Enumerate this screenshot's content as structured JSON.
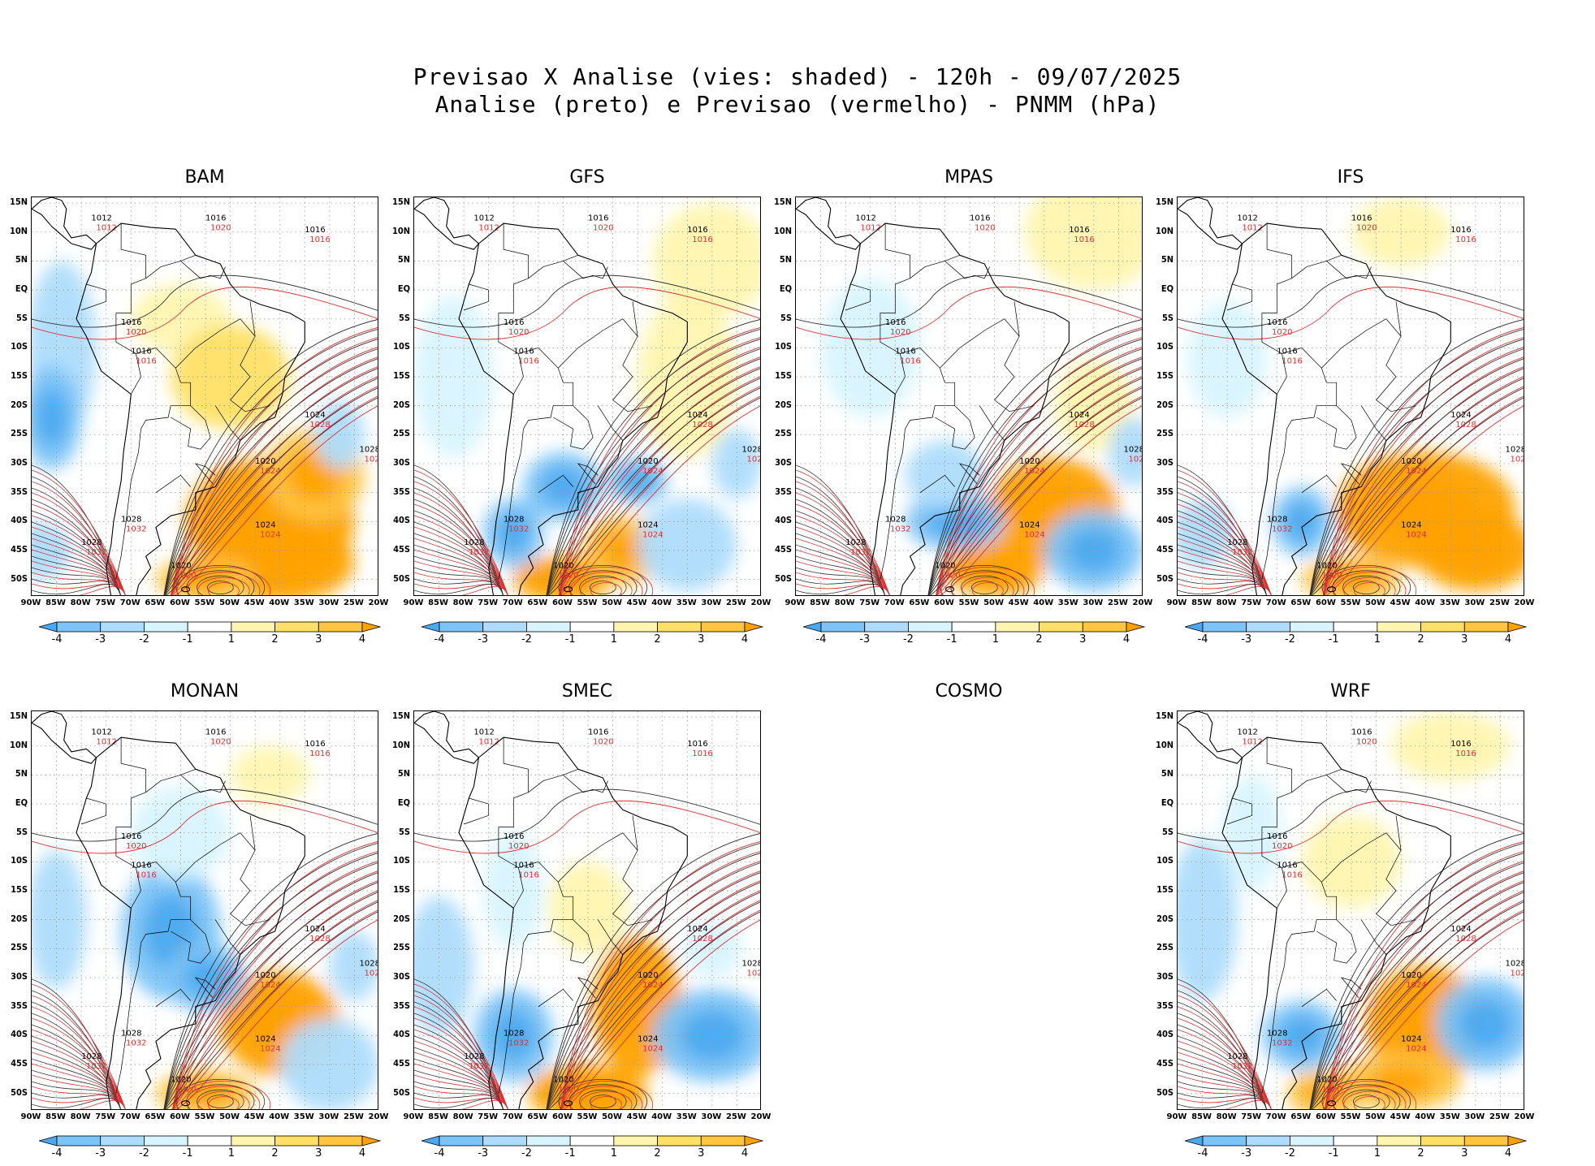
{
  "title": {
    "line1": "Previsao X Analise (vies: shaded) - 120h - 09/07/2025",
    "line2": "Analise (preto) e Previsao (vermelho) - PNMM (hPa)"
  },
  "lat_labels": [
    "15N",
    "10N",
    "5N",
    "EQ",
    "5S",
    "10S",
    "15S",
    "20S",
    "25S",
    "30S",
    "35S",
    "40S",
    "45S",
    "50S"
  ],
  "lon_labels": [
    "90W",
    "85W",
    "80W",
    "75W",
    "70W",
    "65W",
    "60W",
    "55W",
    "50W",
    "45W",
    "40W",
    "35W",
    "30W",
    "25W",
    "20W"
  ],
  "colorbar": {
    "labels": [
      "-4",
      "-3",
      "-2",
      "-1",
      "1",
      "2",
      "3",
      "4"
    ],
    "colors": [
      "#4aa8f0",
      "#7cc4f8",
      "#aedcfc",
      "#d8f4ff",
      "#ffffff",
      "#fff5b0",
      "#ffe066",
      "#ffc440",
      "#ffa200"
    ]
  },
  "isobar_values": [
    "1012",
    "1016",
    "1020",
    "1024",
    "1028",
    "1032"
  ],
  "panels": [
    {
      "name": "BAM",
      "has_map": true
    },
    {
      "name": "GFS",
      "has_map": true
    },
    {
      "name": "MPAS",
      "has_map": true
    },
    {
      "name": "IFS",
      "has_map": true
    },
    {
      "name": "MONAN",
      "has_map": true
    },
    {
      "name": "SMEC",
      "has_map": true
    },
    {
      "name": "COSMO",
      "has_map": false
    },
    {
      "name": "WRF",
      "has_map": true
    }
  ]
}
